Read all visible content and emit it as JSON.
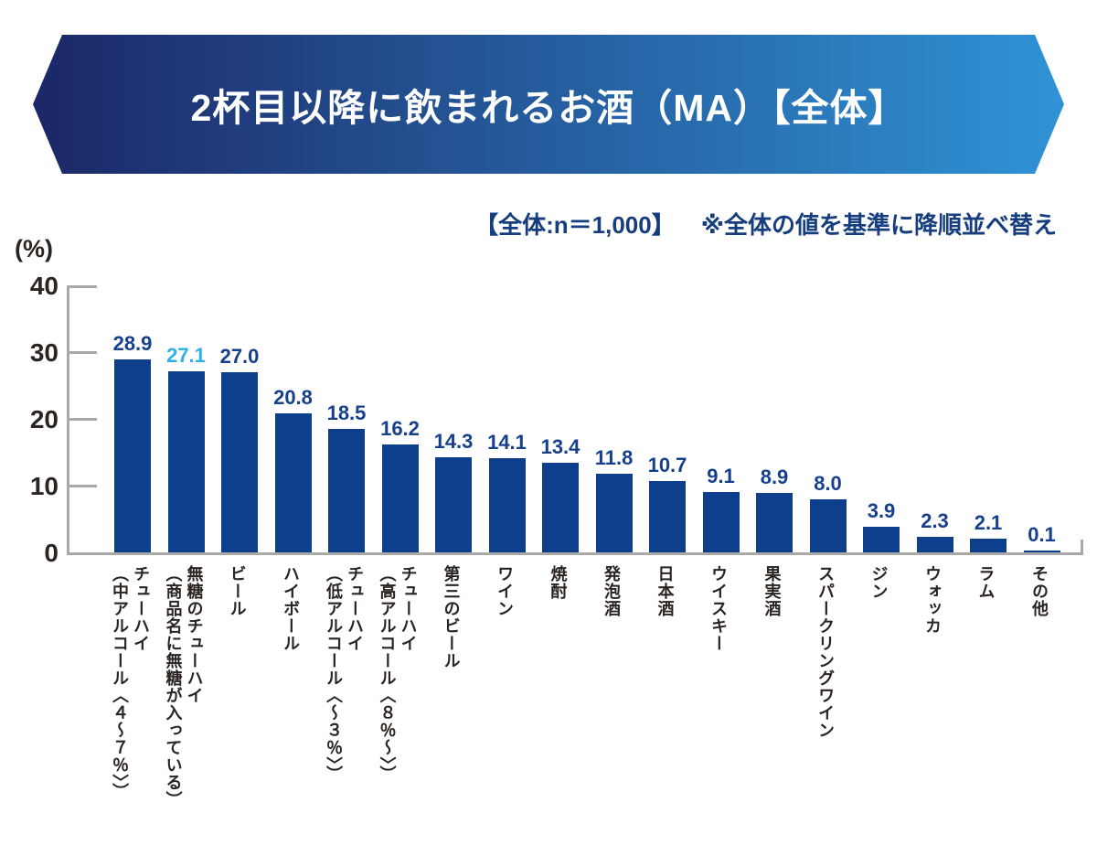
{
  "banner": {
    "title": "2杯目以降に飲まれるお酒（MA）【全体】",
    "gradient_left": "#1c2766",
    "gradient_right": "#2f93d6"
  },
  "note": {
    "sample": "【全体:n＝1,000】",
    "sort": "※全体の値を基準に降順並べ替え",
    "color": "#163e7e"
  },
  "chart_data": {
    "type": "bar",
    "title": "2杯目以降に飲まれるお酒（MA）【全体】",
    "unit_label": "(%)",
    "ylabel": "(%)",
    "xlabel": "",
    "ylim": [
      0,
      40
    ],
    "yticks": [
      40,
      30,
      20,
      10,
      0
    ],
    "grid": false,
    "legend": false,
    "categories": [
      "チューハイ\n（中アルコール〈４～７％〉）",
      "無糖のチューハイ\n（商品名に無糖が入っている）",
      "ビール",
      "ハイボール",
      "チューハイ\n（低アルコール〈～３％〉）",
      "チューハイ\n（高アルコール〈８％～〉）",
      "第三のビール",
      "ワイン",
      "焼酎",
      "発泡酒",
      "日本酒",
      "ウイスキー",
      "果実酒",
      "スパークリングワイン",
      "ジン",
      "ウォッカ",
      "ラム",
      "その他"
    ],
    "values": [
      28.9,
      27.1,
      27.0,
      20.8,
      18.5,
      16.2,
      14.3,
      14.1,
      13.4,
      11.8,
      10.7,
      9.1,
      8.9,
      8.0,
      3.9,
      2.3,
      2.1,
      0.1
    ],
    "bar_color": "#0d3f8c",
    "value_label_color": "#16408c",
    "highlight_index": 1,
    "highlight_value_color": "#30b1e6",
    "axis_color": "#a9a9a9",
    "text_color": "#2b2420"
  }
}
